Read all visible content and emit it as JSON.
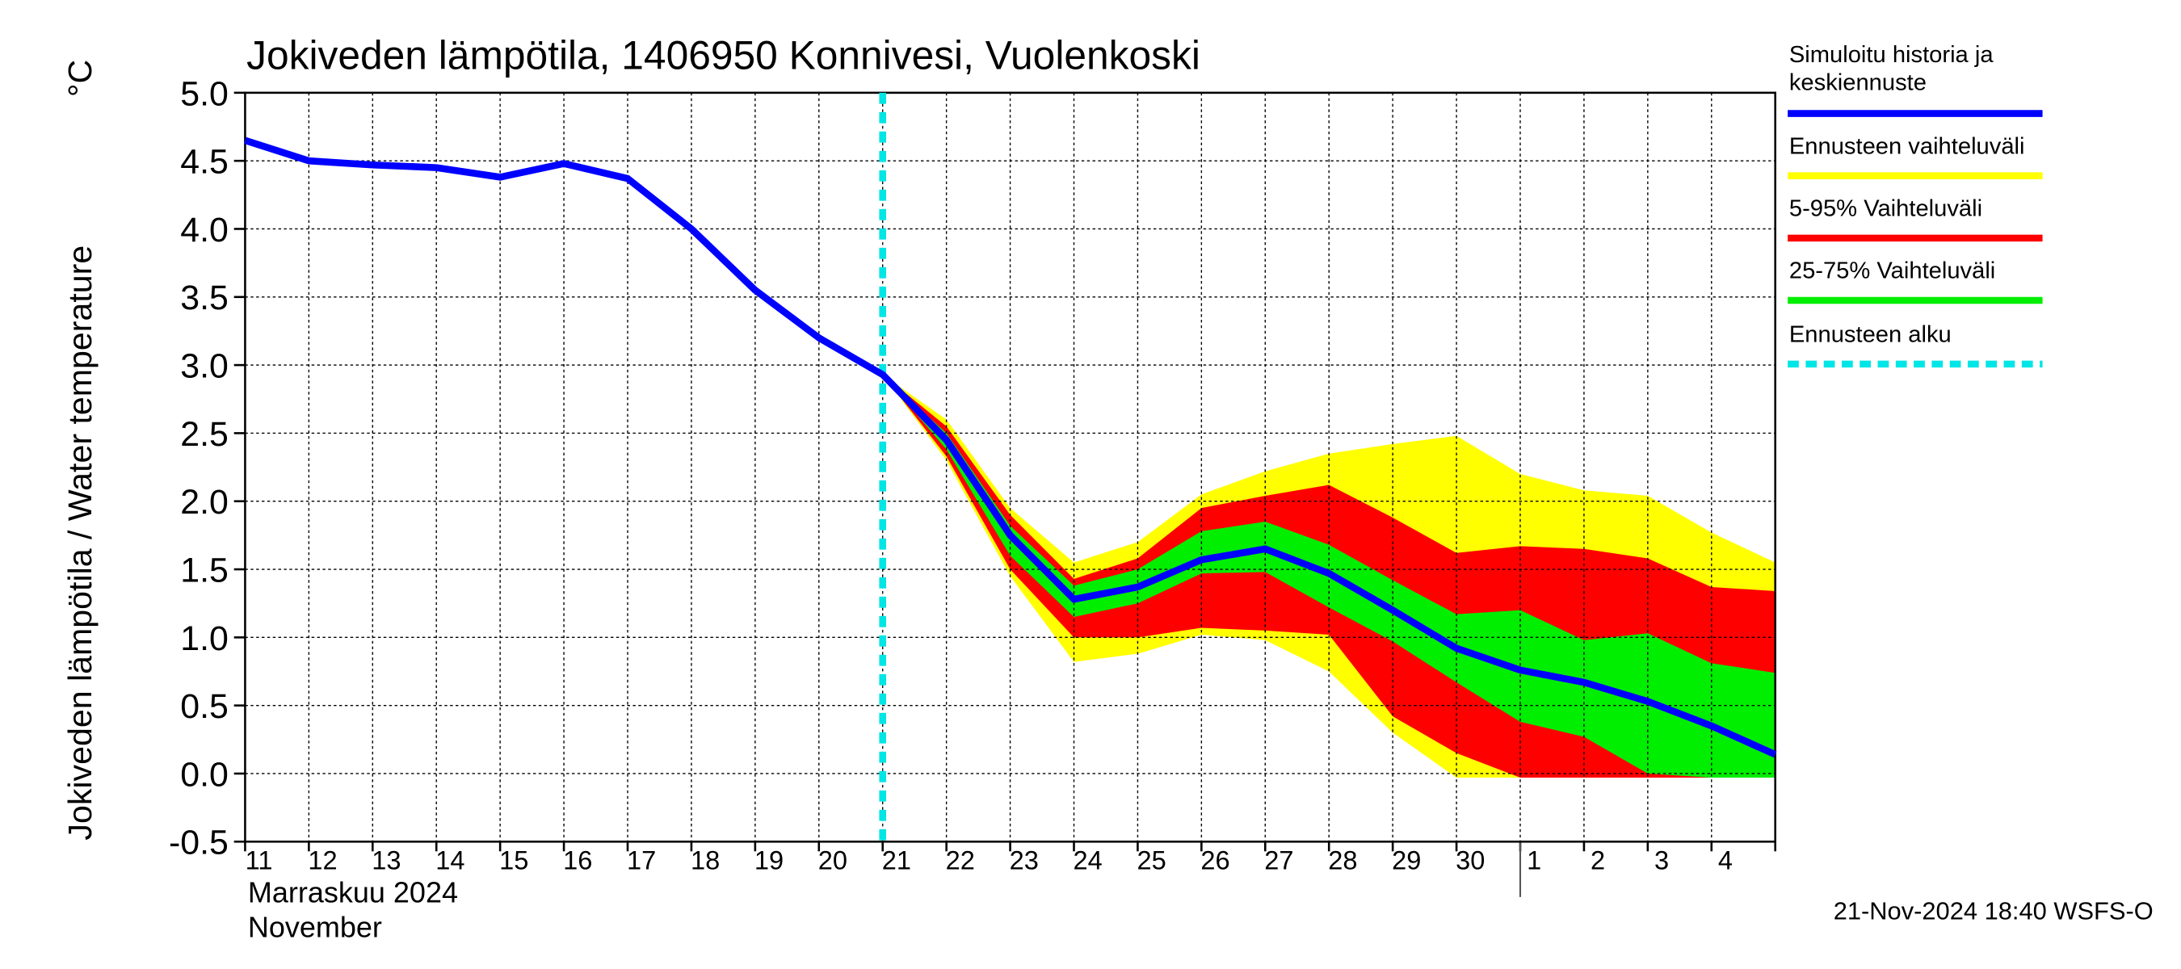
{
  "chart_data": {
    "type": "line",
    "title": "Jokiveden lämpötila, 1406950 Konnivesi, Vuolenkoski",
    "y_label": "Jokiveden lämpötila / Water temperature",
    "y_unit": "°C",
    "x_label": [
      "Marraskuu 2024",
      "November"
    ],
    "timestamp": "21-Nov-2024 18:40 WSFS-O",
    "categories": [
      "11",
      "12",
      "13",
      "14",
      "15",
      "16",
      "17",
      "18",
      "19",
      "20",
      "21",
      "22",
      "23",
      "24",
      "25",
      "26",
      "27",
      "28",
      "29",
      "30",
      "1",
      "2",
      "3",
      "4",
      null
    ],
    "month_divider": "1",
    "ylim": [
      -0.5,
      5.0
    ],
    "yticks": [
      {
        "value": -0.5,
        "label": "-0.5"
      },
      {
        "value": 0,
        "label": "0.0"
      },
      {
        "value": 0.5,
        "label": "0.5"
      },
      {
        "value": 1,
        "label": "1.0"
      },
      {
        "value": 1.5,
        "label": "1.5"
      },
      {
        "value": 2,
        "label": "2.0"
      },
      {
        "value": 2.5,
        "label": "2.5"
      },
      {
        "value": 3,
        "label": "3.0"
      },
      {
        "value": 3.5,
        "label": "3.5"
      },
      {
        "value": 4,
        "label": "4.0"
      },
      {
        "value": 4.5,
        "label": "4.5"
      },
      {
        "value": 5,
        "label": "5.0"
      }
    ],
    "grid": true,
    "series": [
      {
        "name": "Simuloitu historia ja keskiennuste",
        "color": "#0000ff",
        "values": [
          4.65,
          4.5,
          4.47,
          4.45,
          4.38,
          4.48,
          4.37,
          4.0,
          3.55,
          3.2,
          2.93,
          2.45,
          1.75,
          1.28,
          1.37,
          1.57,
          1.65,
          1.47,
          1.2,
          0.92,
          0.76,
          0.67,
          0.53,
          0.35,
          0.14
        ]
      }
    ],
    "bands": [
      {
        "name": "Ennusteen vaihteluväli",
        "color": "#ffff00",
        "lower": [
          null,
          null,
          null,
          null,
          null,
          null,
          null,
          null,
          null,
          null,
          2.93,
          2.3,
          1.45,
          0.82,
          0.88,
          1.02,
          0.98,
          0.75,
          0.3,
          -0.03,
          -0.03,
          -0.03,
          -0.03,
          -0.03,
          -0.03
        ],
        "upper": [
          null,
          null,
          null,
          null,
          null,
          null,
          null,
          null,
          null,
          null,
          2.93,
          2.6,
          1.95,
          1.55,
          1.7,
          2.05,
          2.22,
          2.35,
          2.42,
          2.48,
          2.2,
          2.08,
          2.04,
          1.77,
          1.55
        ]
      },
      {
        "name": "5-95% Vaihteluväli",
        "color": "#ff0000",
        "lower": [
          null,
          null,
          null,
          null,
          null,
          null,
          null,
          null,
          null,
          null,
          2.93,
          2.33,
          1.5,
          1.0,
          1.0,
          1.07,
          1.05,
          1.02,
          0.42,
          0.15,
          -0.03,
          -0.03,
          -0.03,
          -0.03,
          -0.03
        ],
        "upper": [
          null,
          null,
          null,
          null,
          null,
          null,
          null,
          null,
          null,
          null,
          2.93,
          2.55,
          1.9,
          1.43,
          1.58,
          1.95,
          2.04,
          2.12,
          1.88,
          1.62,
          1.67,
          1.65,
          1.58,
          1.37,
          1.34
        ]
      },
      {
        "name": "25-75% Vaihteluväli",
        "color": "#00ee00",
        "lower": [
          null,
          null,
          null,
          null,
          null,
          null,
          null,
          null,
          null,
          null,
          2.93,
          2.38,
          1.6,
          1.15,
          1.25,
          1.47,
          1.48,
          1.22,
          0.97,
          0.67,
          0.38,
          0.27,
          0.0,
          -0.03,
          -0.03
        ],
        "upper": [
          null,
          null,
          null,
          null,
          null,
          null,
          null,
          null,
          null,
          null,
          2.93,
          2.5,
          1.82,
          1.38,
          1.5,
          1.78,
          1.85,
          1.68,
          1.42,
          1.17,
          1.2,
          0.98,
          1.03,
          0.81,
          0.74
        ]
      }
    ],
    "forecast_start": {
      "name": "Ennusteen alku",
      "color": "#00e5e5",
      "at": "21"
    }
  }
}
